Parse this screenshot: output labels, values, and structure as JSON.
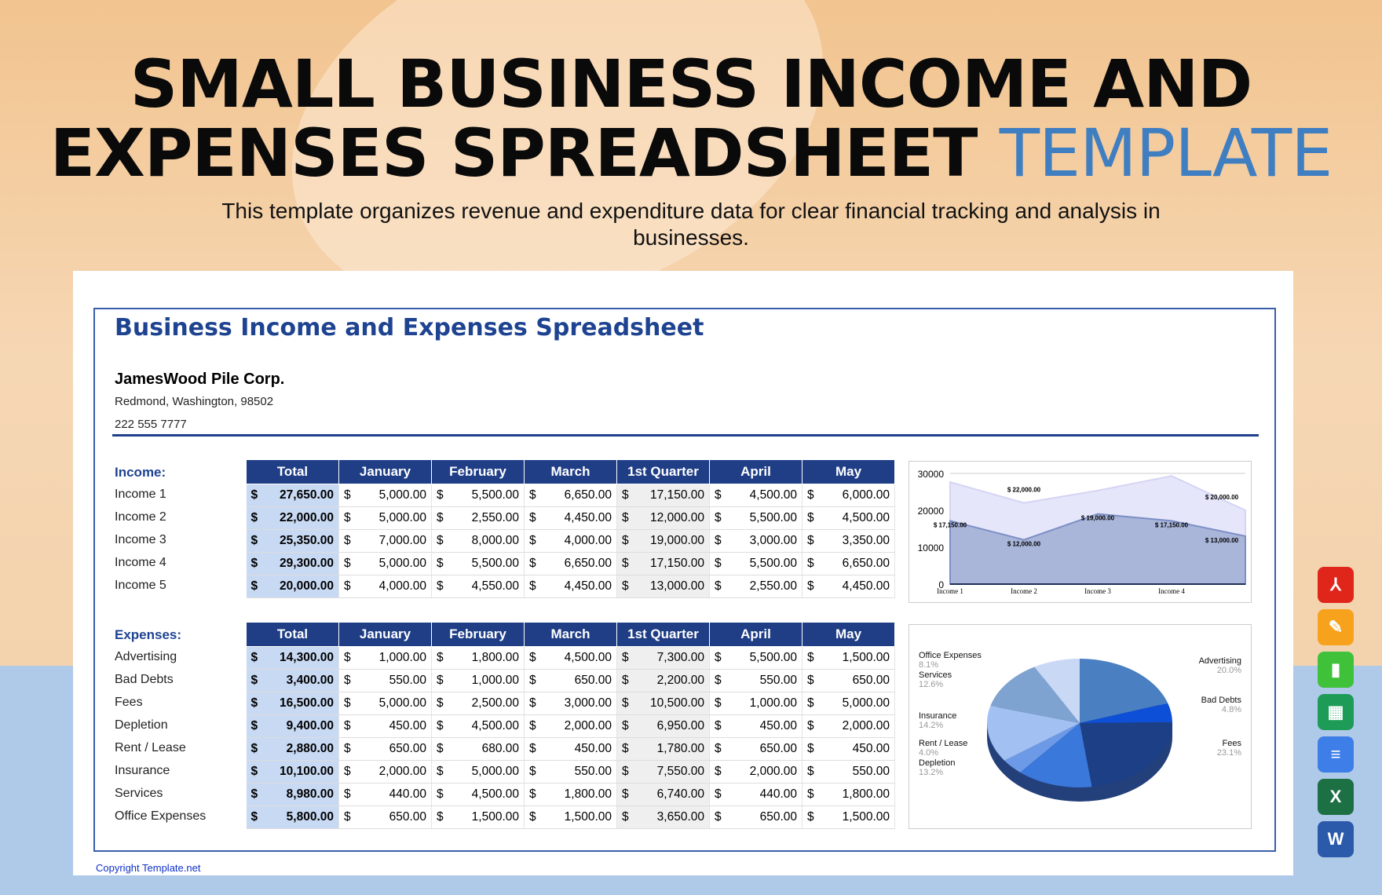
{
  "header": {
    "title_line1": "SMALL BUSINESS INCOME AND",
    "title_line2": "EXPENSES SPREADSHEET",
    "title_accent": "TEMPLATE",
    "subtitle": "This template organizes revenue and expenditure data for clear financial tracking and analysis in businesses."
  },
  "sheet": {
    "heading": "Business Income and Expenses Spreadsheet",
    "company": "JamesWood Pile Corp.",
    "address": "Redmond, Washington, 98502",
    "phone": "222 555 7777",
    "copyright": "Copyright Template.net",
    "currency": "$"
  },
  "columns": [
    "Total",
    "January",
    "February",
    "March",
    "1st Quarter",
    "April",
    "May"
  ],
  "income": {
    "label": "Income:",
    "rows": [
      {
        "name": "Income 1",
        "values": [
          "27,650.00",
          "5,000.00",
          "5,500.00",
          "6,650.00",
          "17,150.00",
          "4,500.00",
          "6,000.00"
        ]
      },
      {
        "name": "Income 2",
        "values": [
          "22,000.00",
          "5,000.00",
          "2,550.00",
          "4,450.00",
          "12,000.00",
          "5,500.00",
          "4,500.00"
        ]
      },
      {
        "name": "Income 3",
        "values": [
          "25,350.00",
          "7,000.00",
          "8,000.00",
          "4,000.00",
          "19,000.00",
          "3,000.00",
          "3,350.00"
        ]
      },
      {
        "name": "Income 4",
        "values": [
          "29,300.00",
          "5,000.00",
          "5,500.00",
          "6,650.00",
          "17,150.00",
          "5,500.00",
          "6,650.00"
        ]
      },
      {
        "name": "Income 5",
        "values": [
          "20,000.00",
          "4,000.00",
          "4,550.00",
          "4,450.00",
          "13,000.00",
          "2,550.00",
          "4,450.00"
        ]
      }
    ]
  },
  "expenses": {
    "label": "Expenses:",
    "rows": [
      {
        "name": "Advertising",
        "values": [
          "14,300.00",
          "1,000.00",
          "1,800.00",
          "4,500.00",
          "7,300.00",
          "5,500.00",
          "1,500.00"
        ]
      },
      {
        "name": "Bad Debts",
        "values": [
          "3,400.00",
          "550.00",
          "1,000.00",
          "650.00",
          "2,200.00",
          "550.00",
          "650.00"
        ]
      },
      {
        "name": "Fees",
        "values": [
          "16,500.00",
          "5,000.00",
          "2,500.00",
          "3,000.00",
          "10,500.00",
          "1,000.00",
          "5,000.00"
        ]
      },
      {
        "name": "Depletion",
        "values": [
          "9,400.00",
          "450.00",
          "4,500.00",
          "2,000.00",
          "6,950.00",
          "450.00",
          "2,000.00"
        ]
      },
      {
        "name": "Rent / Lease",
        "values": [
          "2,880.00",
          "650.00",
          "680.00",
          "450.00",
          "1,780.00",
          "650.00",
          "450.00"
        ]
      },
      {
        "name": "Insurance",
        "values": [
          "10,100.00",
          "2,000.00",
          "5,000.00",
          "550.00",
          "7,550.00",
          "2,000.00",
          "550.00"
        ]
      },
      {
        "name": "Services",
        "values": [
          "8,980.00",
          "440.00",
          "4,500.00",
          "1,800.00",
          "6,740.00",
          "440.00",
          "1,800.00"
        ]
      },
      {
        "name": "Office Expenses",
        "values": [
          "5,800.00",
          "650.00",
          "1,500.00",
          "1,500.00",
          "3,650.00",
          "650.00",
          "1,500.00"
        ]
      }
    ]
  },
  "chart_data": [
    {
      "type": "area",
      "categories": [
        "Income 1",
        "Income 2",
        "Income 3",
        "Income 4",
        ""
      ],
      "ylim": [
        0,
        30000
      ],
      "yticks": [
        "0",
        "10000",
        "20000",
        "30000"
      ],
      "grid": true,
      "series": [
        {
          "values": [
            27650,
            22000,
            25350,
            29300,
            20000
          ],
          "color": "#e6e6fb",
          "labels": [
            "",
            "$ 22,000.00",
            "",
            "",
            "$ 20,000.00"
          ]
        },
        {
          "values": [
            17150,
            12000,
            19000,
            17150,
            13000
          ],
          "color": "#a9b6da",
          "labels": [
            "$ 17,150.00",
            "$ 12,000.00",
            "$ 19,000.00",
            "$ 17,150.00",
            "$ 13,000.00"
          ]
        }
      ]
    },
    {
      "type": "pie",
      "style": "3d",
      "slices": [
        {
          "label": "Advertising",
          "pct": "20.0%",
          "value": 20.0,
          "color": "#4a7fc1"
        },
        {
          "label": "Bad Debts",
          "pct": "4.8%",
          "value": 4.8,
          "color": "#0d4fd6"
        },
        {
          "label": "Fees",
          "pct": "23.1%",
          "value": 23.1,
          "color": "#1d3f85"
        },
        {
          "label": "Depletion",
          "pct": "13.2%",
          "value": 13.2,
          "color": "#3b78db"
        },
        {
          "label": "Rent / Lease",
          "pct": "4.0%",
          "value": 4.0,
          "color": "#6d9ae6"
        },
        {
          "label": "Insurance",
          "pct": "14.2%",
          "value": 14.2,
          "color": "#a3c0f2"
        },
        {
          "label": "Services",
          "pct": "12.6%",
          "value": 12.6,
          "color": "#7fa3d1"
        },
        {
          "label": "Office Expenses",
          "pct": "8.1%",
          "value": 8.1,
          "color": "#c8d8f5"
        }
      ]
    }
  ],
  "app_icons": [
    "pdf-icon",
    "pages-icon",
    "numbers-icon",
    "google-sheets-icon",
    "google-docs-icon",
    "excel-icon",
    "word-icon"
  ]
}
